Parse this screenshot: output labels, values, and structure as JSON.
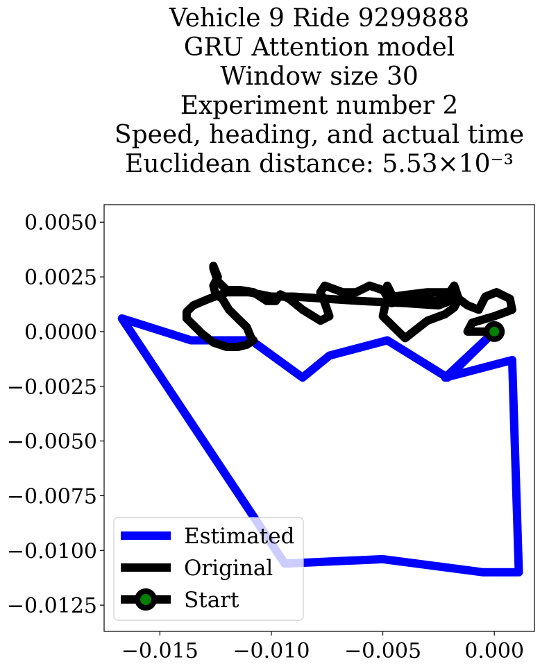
{
  "chart_data": {
    "type": "line",
    "title_lines": [
      "Vehicle 9 Ride 9299888",
      "GRU Attention model",
      "Window size 30",
      "Experiment number 2",
      "Speed, heading, and actual time",
      "Euclidean distance: 5.53×10⁻³"
    ],
    "xlabel": "",
    "ylabel": "",
    "xlim": [
      -0.0175,
      0.0018
    ],
    "ylim": [
      -0.0137,
      0.0058
    ],
    "x_ticks": [
      {
        "value": -0.015,
        "label": "−0.015"
      },
      {
        "value": -0.01,
        "label": "−0.010"
      },
      {
        "value": -0.005,
        "label": "−0.005"
      },
      {
        "value": 0.0,
        "label": "0.000"
      }
    ],
    "y_ticks": [
      {
        "value": 0.005,
        "label": "0.0050"
      },
      {
        "value": 0.0025,
        "label": "0.0025"
      },
      {
        "value": 0.0,
        "label": "0.0000"
      },
      {
        "value": -0.0025,
        "label": "−0.0025"
      },
      {
        "value": -0.005,
        "label": "−0.0050"
      },
      {
        "value": -0.0075,
        "label": "−0.0075"
      },
      {
        "value": -0.01,
        "label": "−0.0100"
      },
      {
        "value": -0.0125,
        "label": "−0.0125"
      }
    ],
    "grid": false,
    "legend_position": "lower-left",
    "series": [
      {
        "name": "Estimated",
        "color": "#0000ff",
        "x": [
          0.0,
          -0.0021,
          -0.0048,
          -0.0074,
          -0.0086,
          -0.0109,
          -0.0136,
          -0.0167,
          -0.0094,
          -0.005,
          -0.0005,
          0.0011,
          0.0008,
          -0.0022,
          0.0
        ],
        "y": [
          0.0,
          -0.0021,
          -0.0004,
          -0.0011,
          -0.0021,
          -0.0004,
          -0.0004,
          0.0006,
          -0.0106,
          -0.0104,
          -0.011,
          -0.011,
          -0.0013,
          -0.0021,
          0.0
        ]
      },
      {
        "name": "Original",
        "color": "#000000",
        "x": [
          0.0,
          -0.0012,
          -0.001,
          0.0,
          0.0008,
          0.0007,
          0.0001,
          -0.0004,
          -0.0007,
          -0.0012,
          -0.0016,
          -0.0018,
          -0.002,
          -0.0023,
          -0.003,
          -0.0038,
          -0.0045,
          -0.0048,
          -0.0048,
          -0.0046,
          -0.0049,
          -0.005,
          -0.0046,
          -0.004,
          -0.003,
          -0.0022,
          -0.0018,
          -0.0016,
          -0.0018,
          -0.002,
          -0.0026,
          -0.0034,
          -0.0042,
          -0.0046,
          -0.0048,
          -0.005,
          -0.0056,
          -0.0062,
          -0.0068,
          -0.0076,
          -0.0078,
          -0.0076,
          -0.0074,
          -0.0078,
          -0.0086,
          -0.0092,
          -0.0096,
          -0.0098,
          -0.0102,
          -0.0108,
          -0.0114,
          -0.012,
          -0.0124,
          -0.0126,
          -0.0126,
          -0.0124,
          -0.0126,
          -0.0125,
          -0.0122,
          -0.0119,
          -0.0115,
          -0.0111,
          -0.0109,
          -0.0108,
          -0.0111,
          -0.0115,
          -0.012,
          -0.0126,
          -0.0131,
          -0.0135,
          -0.0138,
          -0.0138,
          -0.0135,
          -0.0128,
          -0.012,
          -0.011,
          -0.01,
          -0.009,
          -0.0075,
          -0.006,
          -0.004,
          -0.0025,
          -0.0015
        ],
        "y": [
          0.0,
          0.0,
          0.0004,
          0.0007,
          0.001,
          0.0015,
          0.0018,
          0.0016,
          0.001,
          0.0012,
          0.0015,
          0.0017,
          0.0018,
          0.0018,
          0.0018,
          0.0017,
          0.0016,
          0.0019,
          0.0021,
          0.0017,
          0.0012,
          0.0007,
          0.0003,
          -0.0003,
          0.0005,
          0.0008,
          0.0011,
          0.0015,
          0.0021,
          0.0018,
          0.0014,
          0.0015,
          0.0014,
          0.0013,
          0.0016,
          0.0019,
          0.0021,
          0.0018,
          0.0018,
          0.0021,
          0.0018,
          0.0013,
          0.0007,
          0.0005,
          0.001,
          0.0015,
          0.0017,
          0.0014,
          0.0014,
          0.0018,
          0.0019,
          0.0019,
          0.0023,
          0.0029,
          0.003,
          0.0025,
          0.0021,
          0.0017,
          0.0015,
          0.001,
          0.0006,
          0.0002,
          -0.0003,
          -0.0004,
          -0.0006,
          -0.0007,
          -0.0007,
          -0.0005,
          -0.0001,
          0.0003,
          0.0006,
          0.0009,
          0.0012,
          0.0015,
          0.0018,
          0.0018,
          0.0016,
          0.0016,
          0.0015,
          0.0014,
          0.0013,
          0.0012,
          0.0016
        ]
      }
    ],
    "start_point": {
      "name": "Start",
      "x": 0.0,
      "y": 0.0,
      "marker_color": "#008000",
      "edge_color": "#000000"
    }
  }
}
